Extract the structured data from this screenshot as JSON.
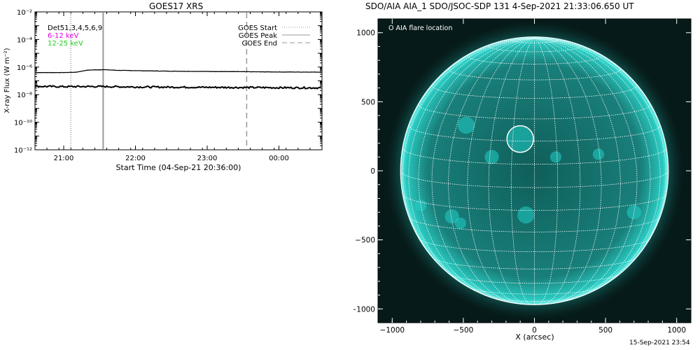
{
  "chart_data": [
    {
      "type": "line",
      "title": "GOES17 XRS",
      "xlabel": "Start Time (04-Sep-21 20:36:00)",
      "ylabel": "X-ray Flux (W m⁻²)",
      "yscale": "log",
      "ylim": [
        1e-12,
        0.01
      ],
      "xlim": [
        "04-Sep-21 20:36",
        "05-Sep-21 00:36"
      ],
      "x_ticks": [
        "21:00",
        "22:00",
        "23:00",
        "00:00"
      ],
      "y_ticks": [
        "10⁻¹²",
        "10⁻¹⁰",
        "10⁻⁸",
        "10⁻⁶",
        "10⁻⁴",
        "10⁻²"
      ],
      "legend_left": [
        {
          "label": "Det51,3,4,5,6,9",
          "color": "#000000"
        },
        {
          "label": "6-12 keV",
          "color": "#dd00dd"
        },
        {
          "label": "12-25 keV",
          "color": "#22cc22"
        }
      ],
      "legend_right": [
        {
          "label": "GOES Start",
          "style": "dotted",
          "color": "#999999"
        },
        {
          "label": "GOES Peak",
          "style": "solid",
          "color": "#999999"
        },
        {
          "label": "GOES End",
          "style": "dashed",
          "color": "#999999"
        }
      ],
      "markers": {
        "start": "21:06",
        "peak": "21:33",
        "end": "23:33"
      },
      "series": [
        {
          "color": "#000000",
          "x": [
            "20:36",
            "21:00",
            "21:10",
            "21:20",
            "21:33",
            "21:45",
            "22:00",
            "22:30",
            "23:00",
            "23:30",
            "00:00",
            "00:36"
          ],
          "values": [
            4e-07,
            4e-07,
            4.2e-07,
            6e-07,
            6.5e-07,
            5.8e-07,
            5.5e-07,
            5e-07,
            4.8e-07,
            4.6e-07,
            4.4e-07,
            4.3e-07
          ]
        },
        {
          "color": "#000000",
          "x": [
            "20:36",
            "21:00",
            "21:30",
            "22:00",
            "22:30",
            "23:00",
            "23:30",
            "00:00",
            "00:36"
          ],
          "values": [
            4e-08,
            3.8e-08,
            3.9e-08,
            3.6e-08,
            3.5e-08,
            3.4e-08,
            3.3e-08,
            3.2e-08,
            3.1e-08
          ]
        }
      ]
    },
    {
      "type": "image",
      "title": "SDO/AIA AIA_1 SDO/JSOC-SDP 131  4-Sep-2021 21:33:06.650 UT",
      "xlabel": "X (arcsec)",
      "ylabel": "",
      "xlim": [
        -1100,
        1100
      ],
      "ylim": [
        -1100,
        1100
      ],
      "x_ticks": [
        "−1000",
        "−500",
        "0",
        "500",
        "1000"
      ],
      "y_ticks": [
        "−1000",
        "−500",
        "0",
        "500",
        "1000"
      ],
      "legend": "O AIA flare location",
      "flare_location": {
        "x": -100,
        "y": 230
      },
      "solar_radius_arcsec": 955,
      "image_color": "#20d0c8"
    }
  ],
  "footer": "15-Sep-2021 23:54"
}
